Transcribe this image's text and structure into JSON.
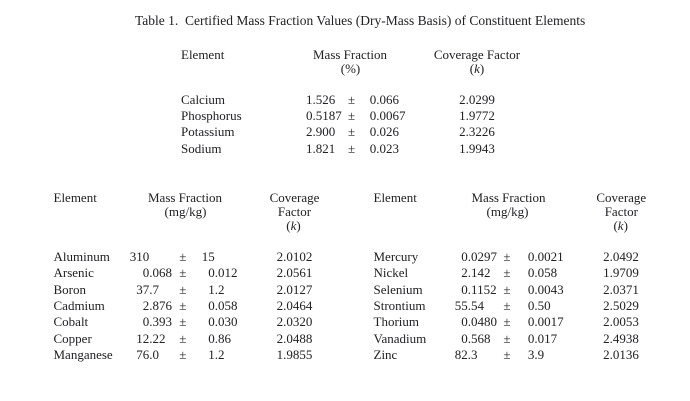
{
  "page": {
    "background": "#ffffff",
    "text_color": "#212126"
  },
  "title": "Table 1.  Certified Mass Fraction Values (Dry-Mass Basis) of Constituent Elements",
  "percent_table": {
    "headers": {
      "element": "Element",
      "mass_fraction": "Mass Fraction",
      "unit": "(%)",
      "coverage": "Coverage Factor",
      "k_open": "(",
      "k_symbol": "k",
      "k_close": ")"
    },
    "pm_sign": "±",
    "rows": [
      {
        "element": "Calcium",
        "value": "1.526",
        "uncertainty": "0.066",
        "coverage_factor": "2.0299"
      },
      {
        "element": "Phosphorus",
        "value": "0.5187",
        "uncertainty": "0.0067",
        "coverage_factor": "1.9772"
      },
      {
        "element": "Potassium",
        "value": "2.900",
        "uncertainty": "0.026",
        "coverage_factor": "2.3226"
      },
      {
        "element": "Sodium",
        "value": "1.821",
        "uncertainty": "0.023",
        "coverage_factor": "1.9943"
      }
    ]
  },
  "mgkg_left_table": {
    "headers": {
      "element": "Element",
      "mass_fraction": "Mass Fraction",
      "unit": "(mg/kg)",
      "coverage_line1": "Coverage",
      "coverage_line2": "Factor",
      "k_open": "(",
      "k_symbol": "k",
      "k_close": ")"
    },
    "pm_sign": "±",
    "rows": [
      {
        "element": "Aluminum",
        "value": "310",
        "uncertainty": "15",
        "coverage_factor": "2.0102"
      },
      {
        "element": "Arsenic",
        "value": "0.068",
        "uncertainty": "0.012",
        "coverage_factor": "2.0561"
      },
      {
        "element": "Boron",
        "value": "37.7",
        "uncertainty": "1.2",
        "coverage_factor": "2.0127"
      },
      {
        "element": "Cadmium",
        "value": "2.876",
        "uncertainty": "0.058",
        "coverage_factor": "2.0464"
      },
      {
        "element": "Cobalt",
        "value": "0.393",
        "uncertainty": "0.030",
        "coverage_factor": "2.0320"
      },
      {
        "element": "Copper",
        "value": "12.22",
        "uncertainty": "0.86",
        "coverage_factor": "2.0488"
      },
      {
        "element": "Manganese",
        "value": "76.0",
        "uncertainty": "1.2",
        "coverage_factor": "1.9855"
      }
    ]
  },
  "mgkg_right_table": {
    "headers": {
      "element": "Element",
      "mass_fraction": "Mass Fraction",
      "unit": "(mg/kg)",
      "coverage_line1": "Coverage",
      "coverage_line2": "Factor",
      "k_open": "(",
      "k_symbol": "k",
      "k_close": ")"
    },
    "pm_sign": "±",
    "rows": [
      {
        "element": "Mercury",
        "value": "0.0297",
        "uncertainty": "0.0021",
        "coverage_factor": "2.0492"
      },
      {
        "element": "Nickel",
        "value": "2.142",
        "uncertainty": "0.058",
        "coverage_factor": "1.9709"
      },
      {
        "element": "Selenium",
        "value": "0.1152",
        "uncertainty": "0.0043",
        "coverage_factor": "2.0371"
      },
      {
        "element": "Strontium",
        "value": "55.54",
        "uncertainty": "0.50",
        "coverage_factor": "2.5029"
      },
      {
        "element": "Thorium",
        "value": "0.0480",
        "uncertainty": "0.0017",
        "coverage_factor": "2.0053"
      },
      {
        "element": "Vanadium",
        "value": "0.568",
        "uncertainty": "0.017",
        "coverage_factor": "2.4938"
      },
      {
        "element": "Zinc",
        "value": "82.3",
        "uncertainty": "3.9",
        "coverage_factor": "2.0136"
      }
    ]
  }
}
